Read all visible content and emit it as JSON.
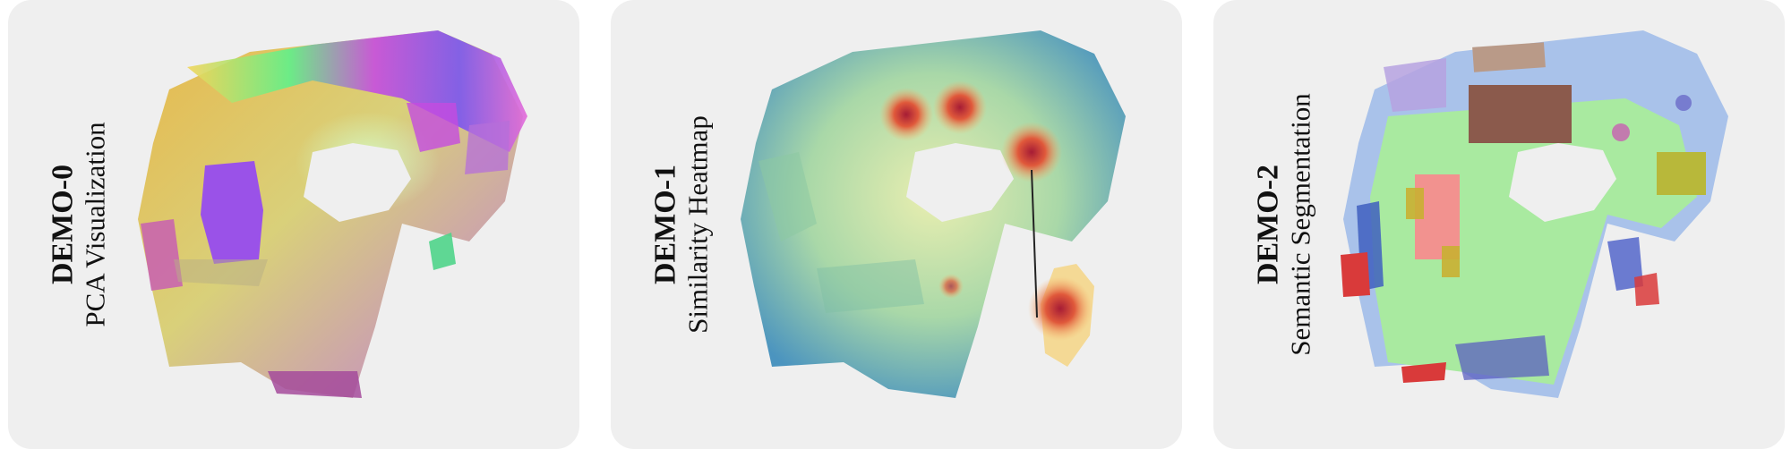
{
  "panels": [
    {
      "title": "DEMO-0",
      "subtitle": "PCA Visualization",
      "image": "pca-colored-point-cloud"
    },
    {
      "title": "DEMO-1",
      "subtitle": "Similarity Heatmap",
      "image": "similarity-heatmap-point-cloud"
    },
    {
      "title": "DEMO-2",
      "subtitle": "Semantic Segmentation",
      "image": "semantic-segmentation-point-cloud"
    }
  ],
  "colors": {
    "panel_bg": "#efefef",
    "heatmap_low": "#3f87b8",
    "heatmap_mid": "#f2ecb0",
    "heatmap_high": "#b01f35",
    "floor": "#a9eaa0",
    "walls": "#a9c2ea"
  }
}
